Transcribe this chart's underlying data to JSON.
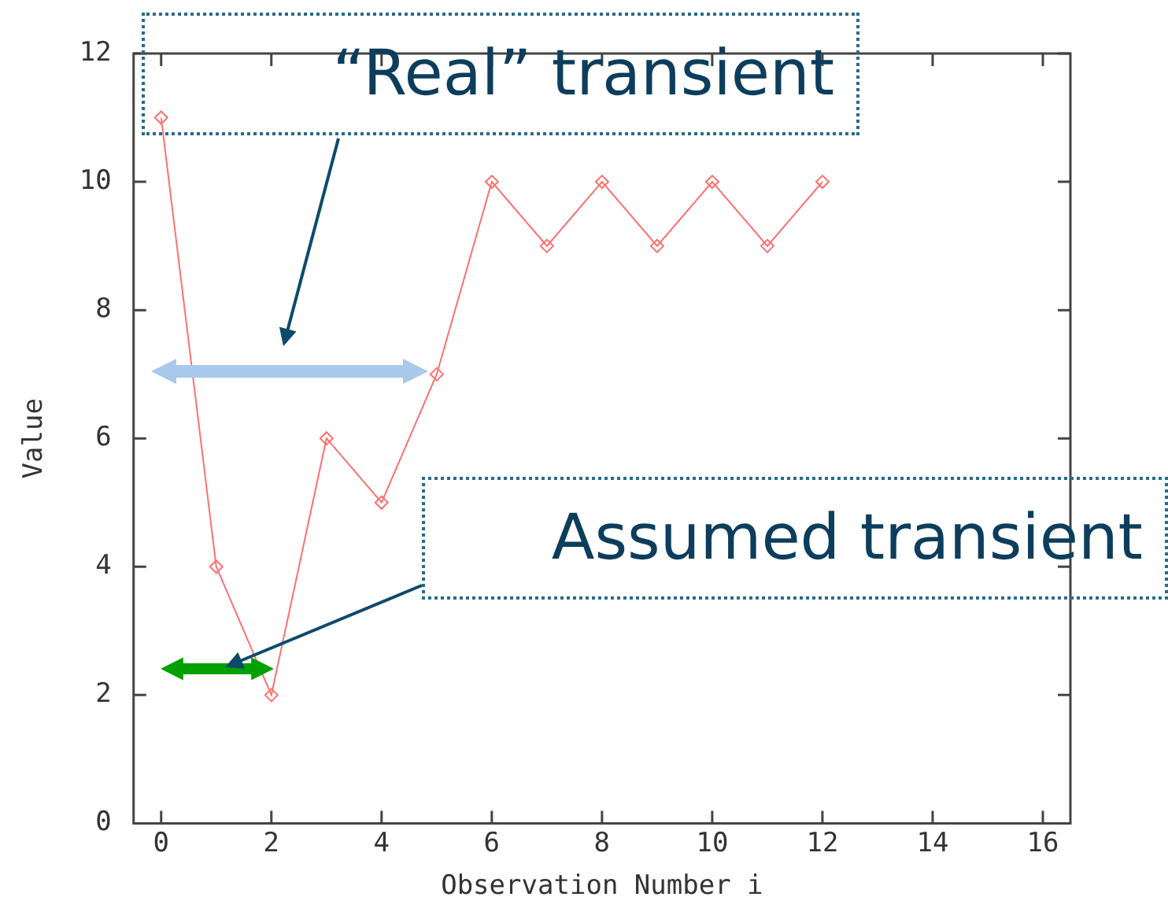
{
  "chart_data": {
    "type": "line",
    "xlabel": "Observation Number i",
    "ylabel": "Value",
    "x": [
      0,
      1,
      2,
      3,
      4,
      5,
      6,
      7,
      8,
      9,
      10,
      11,
      12
    ],
    "series": [
      {
        "color": "#ff7070",
        "values": [
          11,
          4,
          2,
          6,
          5,
          7,
          10,
          9,
          10,
          9,
          10,
          9,
          10
        ]
      }
    ],
    "xlim": [
      -0.5,
      16.5
    ],
    "xticks": [
      0,
      2,
      4,
      6,
      8,
      10,
      12,
      14,
      16
    ],
    "ylim": [
      0,
      12
    ],
    "yticks": [
      0,
      2,
      4,
      6,
      8,
      10,
      12
    ],
    "grid": false,
    "legend": false,
    "marker": "diamond",
    "line_style": "solid",
    "annotations": [
      "“Real” transient",
      "Assumed transient"
    ]
  }
}
